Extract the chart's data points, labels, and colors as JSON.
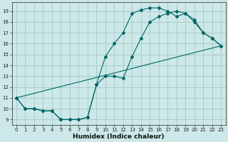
{
  "title": "",
  "xlabel": "Humidex (Indice chaleur)",
  "bg_color": "#cce8e8",
  "grid_color": "#aacccc",
  "line_color": "#006666",
  "xlim": [
    -0.5,
    23.5
  ],
  "ylim": [
    8.5,
    19.8
  ],
  "xticks": [
    0,
    1,
    2,
    3,
    4,
    5,
    6,
    7,
    8,
    9,
    10,
    11,
    12,
    13,
    14,
    15,
    16,
    17,
    18,
    19,
    20,
    21,
    22,
    23
  ],
  "yticks": [
    9,
    10,
    11,
    12,
    13,
    14,
    15,
    16,
    17,
    18,
    19
  ],
  "line1_x": [
    0,
    1,
    2,
    3,
    4,
    5,
    6,
    7,
    8,
    9,
    10,
    11,
    12,
    13,
    14,
    15,
    16,
    17,
    18,
    19,
    20,
    21,
    22,
    23
  ],
  "line1_y": [
    11,
    10,
    10,
    9.8,
    9.8,
    9,
    9,
    9,
    9.2,
    12.2,
    14.8,
    16.0,
    17.0,
    18.8,
    19.1,
    19.3,
    19.3,
    19.0,
    18.5,
    18.8,
    18.0,
    17.0,
    16.5,
    15.8
  ],
  "line2_x": [
    0,
    1,
    2,
    3,
    4,
    5,
    6,
    7,
    8,
    9,
    10,
    11,
    12,
    13,
    14,
    15,
    16,
    17,
    18,
    19,
    20,
    21,
    22,
    23
  ],
  "line2_y": [
    11,
    10,
    10,
    9.8,
    9.8,
    9,
    9,
    9,
    9.2,
    12.2,
    13.0,
    13.0,
    12.8,
    14.8,
    16.5,
    18.0,
    18.5,
    18.8,
    19.0,
    18.8,
    18.2,
    17.0,
    16.5,
    15.8
  ],
  "line3_x": [
    0,
    23
  ],
  "line3_y": [
    11,
    15.8
  ],
  "tick_fontsize": 5.0,
  "xlabel_fontsize": 6.5
}
